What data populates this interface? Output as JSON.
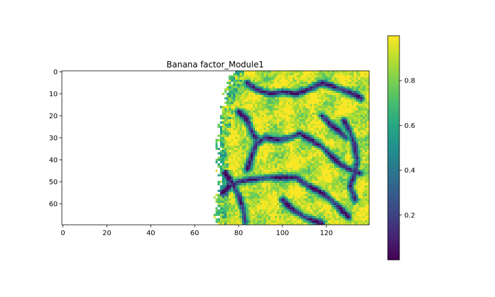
{
  "chart_data": {
    "type": "heatmap",
    "title": "Banana factor_Module1",
    "xlabel": "",
    "ylabel": "",
    "grid_shape": [
      70,
      140
    ],
    "xlim": [
      -0.5,
      139.5
    ],
    "ylim": [
      69.5,
      -0.5
    ],
    "x_ticks": [
      0,
      20,
      40,
      60,
      80,
      100,
      120
    ],
    "x_tick_labels": [
      "0",
      "20",
      "40",
      "60",
      "80",
      "100",
      "120"
    ],
    "y_ticks": [
      0,
      10,
      20,
      30,
      40,
      50,
      60
    ],
    "y_tick_labels": [
      "0",
      "10",
      "20",
      "30",
      "40",
      "50",
      "60"
    ],
    "colormap": "viridis",
    "nodata_color": "#ffffff",
    "value_range": [
      0.0,
      1.0
    ],
    "colorbar": {
      "ticks": [
        0.2,
        0.4,
        0.6,
        0.8
      ],
      "tick_labels": [
        "0.2",
        "0.4",
        "0.6",
        "0.8"
      ],
      "range": [
        0.0,
        1.0
      ]
    },
    "data_extent_note": "Values present only for columns ~70–139; columns 0–69 are empty (no data).",
    "valid_region": {
      "left_edge_col_by_row": [
        [
          0,
          78
        ],
        [
          5,
          76
        ],
        [
          10,
          74
        ],
        [
          20,
          72
        ],
        [
          30,
          71
        ],
        [
          40,
          71
        ],
        [
          50,
          71
        ],
        [
          60,
          70
        ],
        [
          69,
          70
        ]
      ],
      "right_edge_col": 139
    },
    "low_value_valleys": [
      {
        "name": "central ridge line",
        "points": [
          [
            84,
            44
          ],
          [
            86,
            38
          ],
          [
            88,
            33
          ],
          [
            92,
            30
          ],
          [
            98,
            31
          ],
          [
            103,
            30
          ],
          [
            108,
            28
          ],
          [
            113,
            31
          ],
          [
            118,
            34
          ],
          [
            122,
            38
          ],
          [
            126,
            42
          ],
          [
            130,
            44
          ],
          [
            135,
            46
          ]
        ]
      },
      {
        "name": "lower-middle ridge",
        "points": [
          [
            73,
            55
          ],
          [
            76,
            52
          ],
          [
            80,
            50
          ],
          [
            86,
            49
          ],
          [
            94,
            48
          ],
          [
            100,
            48
          ],
          [
            106,
            48
          ],
          [
            112,
            52
          ],
          [
            118,
            55
          ],
          [
            122,
            58
          ],
          [
            126,
            62
          ],
          [
            130,
            66
          ]
        ]
      },
      {
        "name": "top crescent",
        "points": [
          [
            84,
            5
          ],
          [
            88,
            8
          ],
          [
            94,
            10
          ],
          [
            100,
            9
          ],
          [
            106,
            10
          ],
          [
            112,
            8
          ],
          [
            118,
            5
          ],
          [
            124,
            7
          ],
          [
            130,
            9
          ],
          [
            136,
            12
          ]
        ]
      },
      {
        "name": "right vertical valley",
        "points": [
          [
            128,
            22
          ],
          [
            131,
            28
          ],
          [
            133,
            34
          ],
          [
            134,
            40
          ],
          [
            133,
            46
          ],
          [
            131,
            52
          ],
          [
            133,
            58
          ]
        ]
      },
      {
        "name": "lower-left branch",
        "points": [
          [
            74,
            46
          ],
          [
            77,
            50
          ],
          [
            80,
            56
          ],
          [
            82,
            62
          ],
          [
            83,
            68
          ]
        ]
      },
      {
        "name": "lower-right branch",
        "points": [
          [
            100,
            58
          ],
          [
            104,
            62
          ],
          [
            110,
            66
          ],
          [
            118,
            69
          ]
        ]
      },
      {
        "name": "upper-left streak",
        "points": [
          [
            80,
            18
          ],
          [
            84,
            22
          ],
          [
            86,
            27
          ],
          [
            88,
            30
          ]
        ]
      },
      {
        "name": "right upper streak",
        "points": [
          [
            118,
            20
          ],
          [
            122,
            24
          ],
          [
            126,
            27
          ],
          [
            129,
            30
          ]
        ]
      }
    ]
  }
}
